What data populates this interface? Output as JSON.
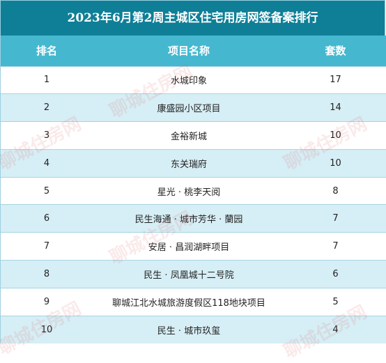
{
  "title": "2023年6月第2周主城区住宅用房网签备案排行",
  "headers": {
    "rank": "排名",
    "project": "项目名称",
    "count": "套数"
  },
  "rows": [
    {
      "rank": "1",
      "project": "水城印象",
      "count": "17"
    },
    {
      "rank": "2",
      "project": "康盛园小区项目",
      "count": "14"
    },
    {
      "rank": "3",
      "project": "金裕新城",
      "count": "10"
    },
    {
      "rank": "4",
      "project": "东关瑞府",
      "count": "10"
    },
    {
      "rank": "5",
      "project": "星光 · 桃李天阅",
      "count": "8"
    },
    {
      "rank": "6",
      "project": "民生海通 · 城市芳华 · 蘭园",
      "count": "7"
    },
    {
      "rank": "7",
      "project": "安居 · 昌润湖畔项目",
      "count": "7"
    },
    {
      "rank": "8",
      "project": "民生 · 凤凰城十二号院",
      "count": "6"
    },
    {
      "rank": "9",
      "project": "聊城江北水城旅游度假区118地块项目",
      "count": "5"
    },
    {
      "rank": "10",
      "project": "民生 · 城市玖玺",
      "count": "4"
    }
  ],
  "watermark": "聊城住房网"
}
